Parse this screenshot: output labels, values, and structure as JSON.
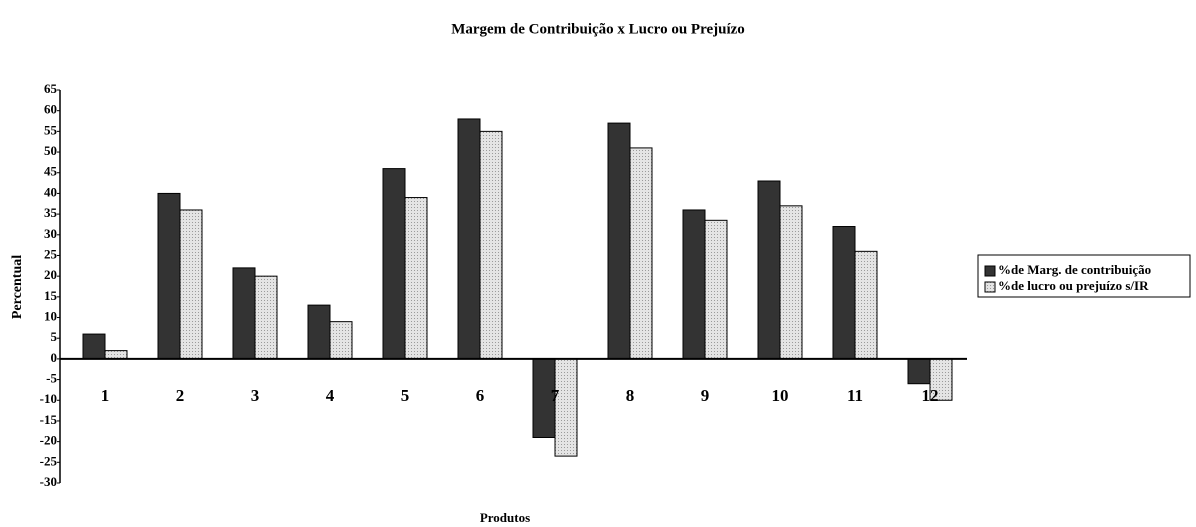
{
  "chart_data": {
    "type": "bar",
    "title": "Margem de Contribuição x Lucro  ou  Prejuízo",
    "x_label": "Produtos",
    "y_label": "Percentual",
    "categories": [
      "1",
      "2",
      "3",
      "4",
      "5",
      "6",
      "7",
      "8",
      "9",
      "10",
      "11",
      "12"
    ],
    "series": [
      {
        "name": "%de Marg. de contribuição",
        "color": "#333333",
        "values": [
          6,
          40,
          22,
          13,
          46,
          58,
          -19,
          57,
          36,
          43,
          32,
          -6
        ]
      },
      {
        "name": "%de  lucro ou prejuízo s/IR",
        "color": "#d9d9d9",
        "values": [
          2,
          36,
          20,
          9,
          39,
          55,
          -23.5,
          51,
          33.5,
          37,
          26,
          -10
        ]
      }
    ],
    "ylim": [
      -30,
      65
    ],
    "yticks": [
      -30,
      -25,
      -20,
      -15,
      -10,
      -5,
      0,
      5,
      10,
      15,
      20,
      25,
      30,
      35,
      40,
      45,
      50,
      55,
      60,
      65
    ],
    "grid": false,
    "legend": "right"
  }
}
